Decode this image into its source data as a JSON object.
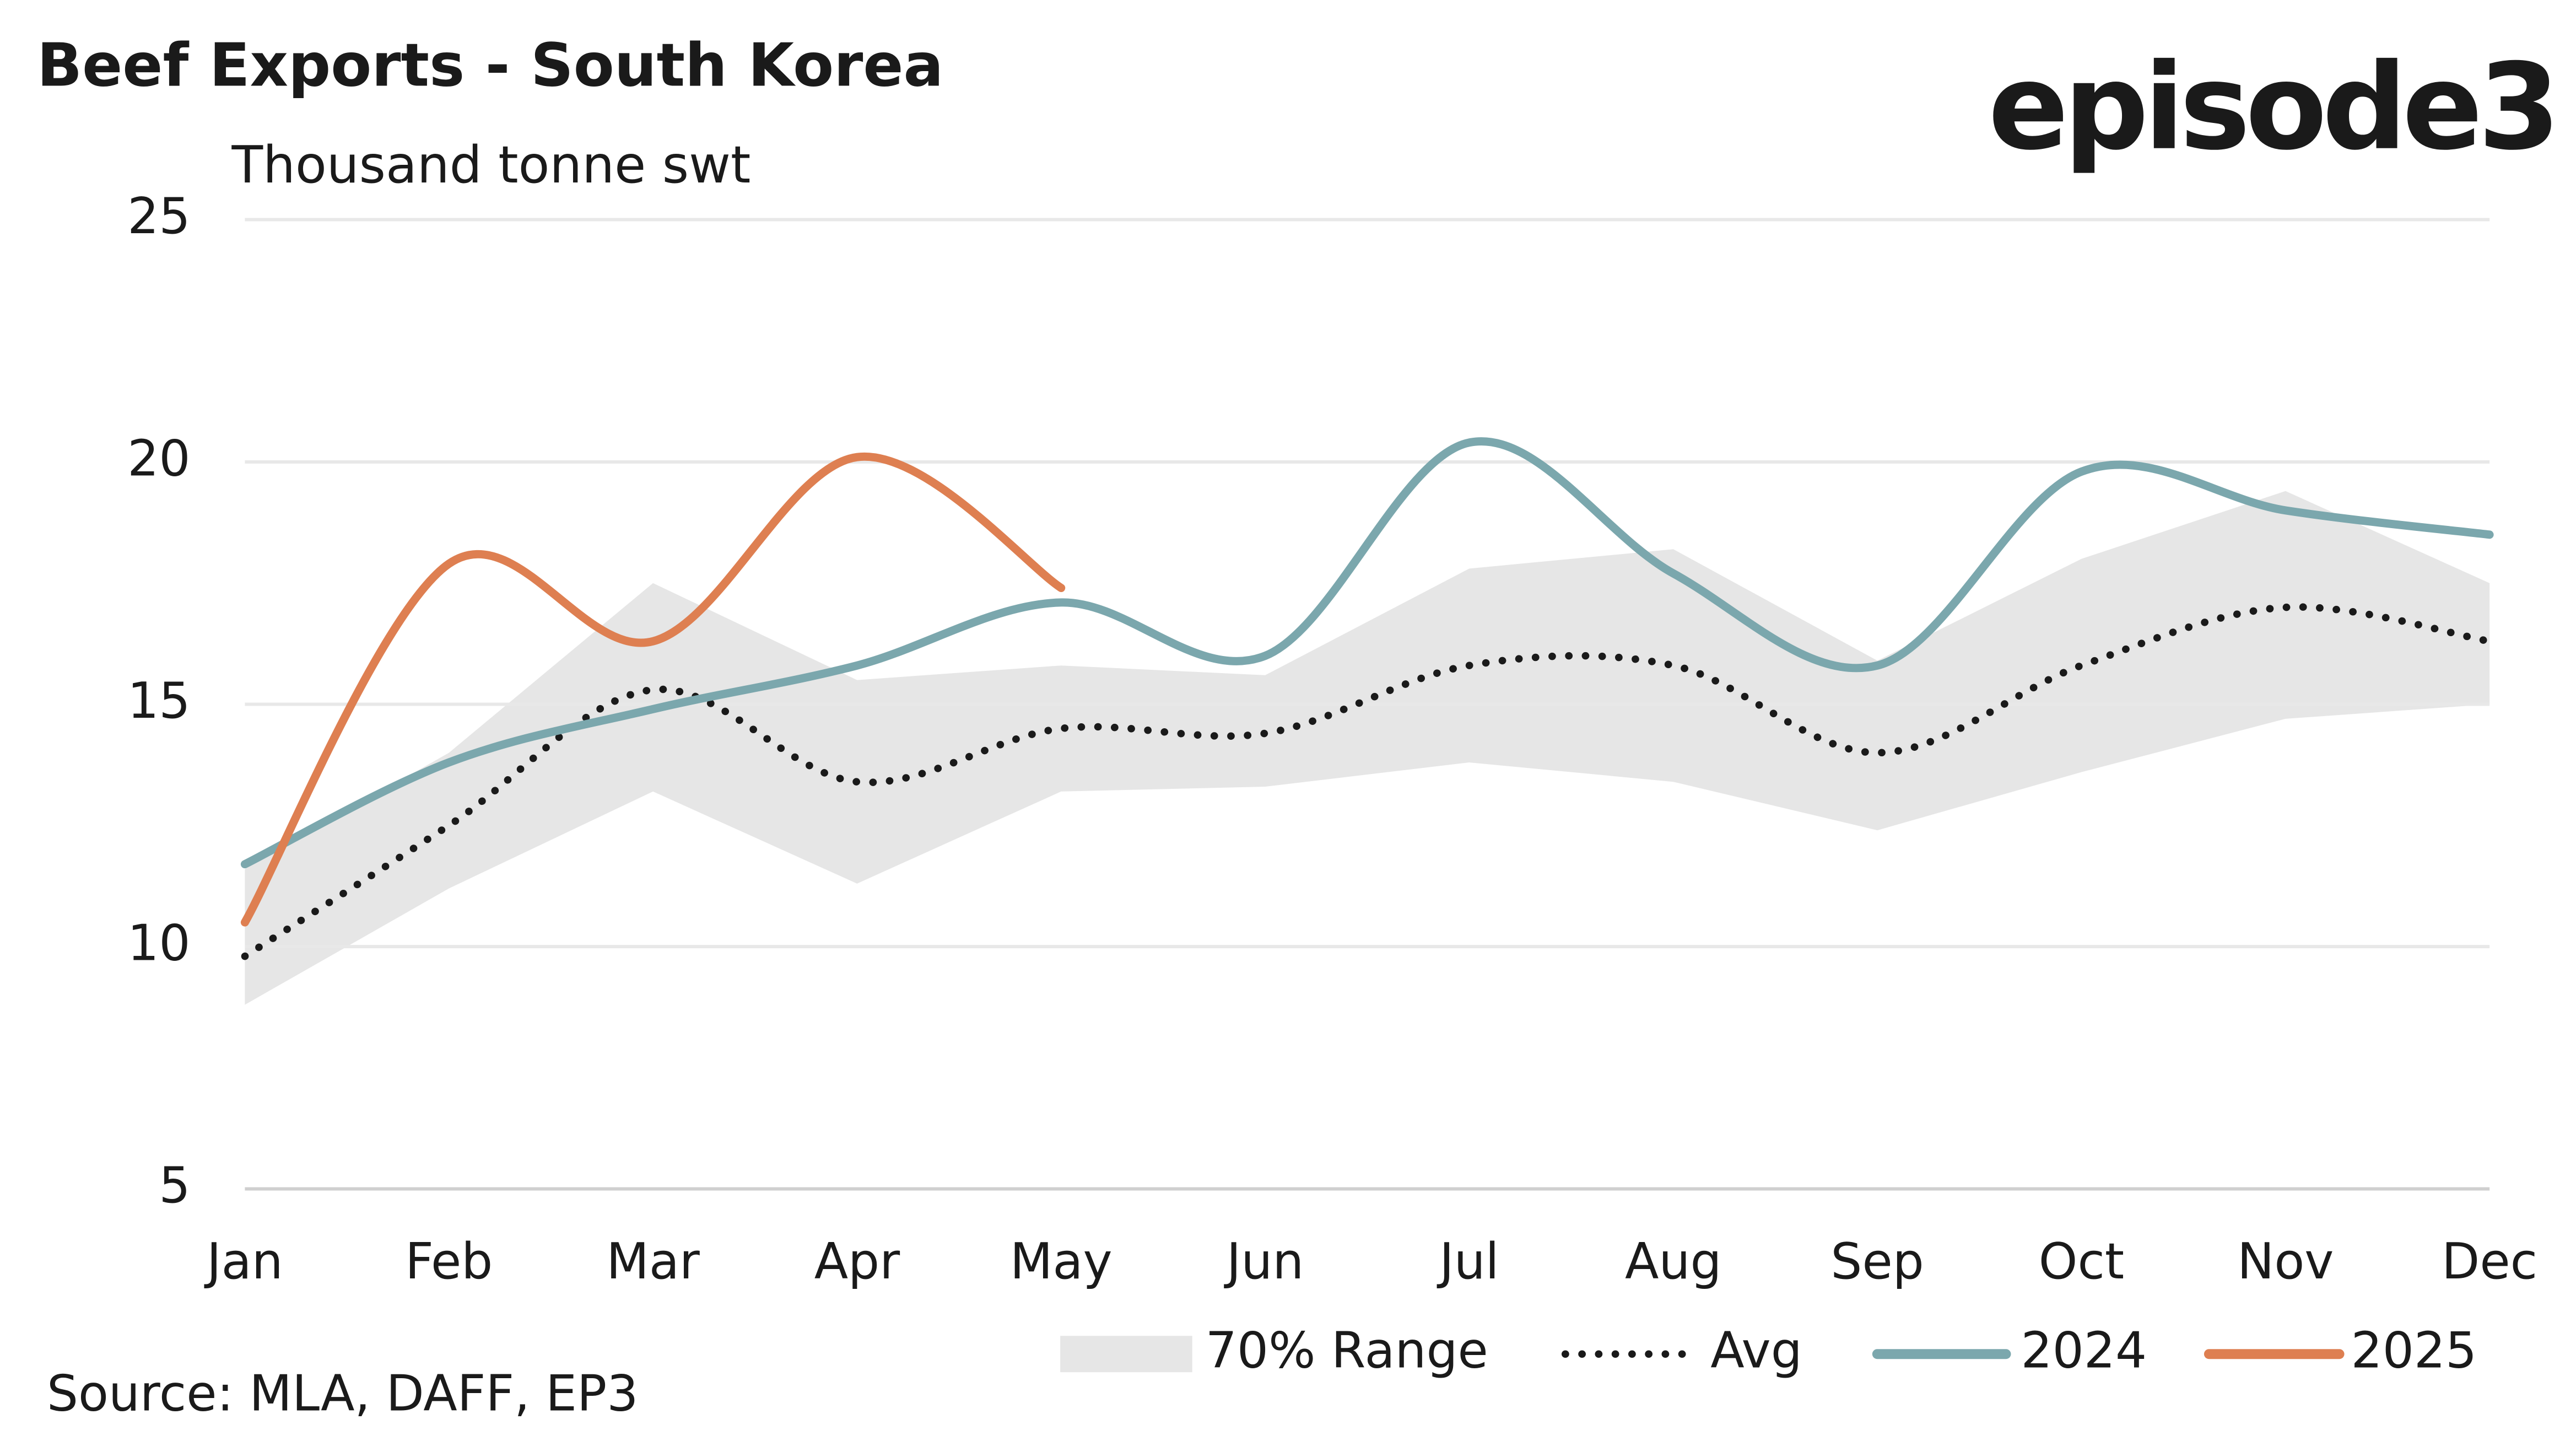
{
  "chart_data": {
    "type": "line",
    "title": "Beef Exports - South Korea",
    "subtitle": "Thousand tonne swt",
    "logo": "episode3",
    "source": "Source: MLA, DAFF, EP3",
    "categories": [
      "Jan",
      "Feb",
      "Mar",
      "Apr",
      "May",
      "Jun",
      "Jul",
      "Aug",
      "Sep",
      "Oct",
      "Nov",
      "Dec"
    ],
    "ylim": [
      5,
      25
    ],
    "yticks": [
      5,
      10,
      15,
      20,
      25
    ],
    "grid": true,
    "range": {
      "name": "70% Range",
      "color": "#e6e6e6",
      "upper": [
        11.6,
        14.0,
        17.5,
        15.5,
        15.8,
        15.6,
        17.8,
        18.2,
        15.9,
        18.0,
        19.4,
        17.5
      ],
      "lower": [
        8.8,
        11.2,
        13.2,
        11.3,
        13.2,
        13.3,
        13.8,
        13.4,
        12.4,
        13.6,
        14.7,
        15.0
      ]
    },
    "series": [
      {
        "name": "Avg",
        "color": "#1a1a1a",
        "dashed": true,
        "values": [
          9.8,
          12.5,
          15.3,
          13.4,
          14.5,
          14.4,
          15.8,
          15.8,
          14.0,
          15.8,
          17.0,
          16.3
        ]
      },
      {
        "name": "2024",
        "color": "#7ba7ad",
        "values": [
          11.7,
          13.8,
          14.9,
          15.8,
          17.1,
          16.0,
          20.4,
          17.7,
          15.8,
          19.8,
          19.0,
          18.5
        ]
      },
      {
        "name": "2025",
        "color": "#de7f51",
        "values": [
          10.5,
          17.9,
          16.3,
          20.1,
          17.4,
          null,
          null,
          null,
          null,
          null,
          null,
          null
        ]
      }
    ]
  }
}
